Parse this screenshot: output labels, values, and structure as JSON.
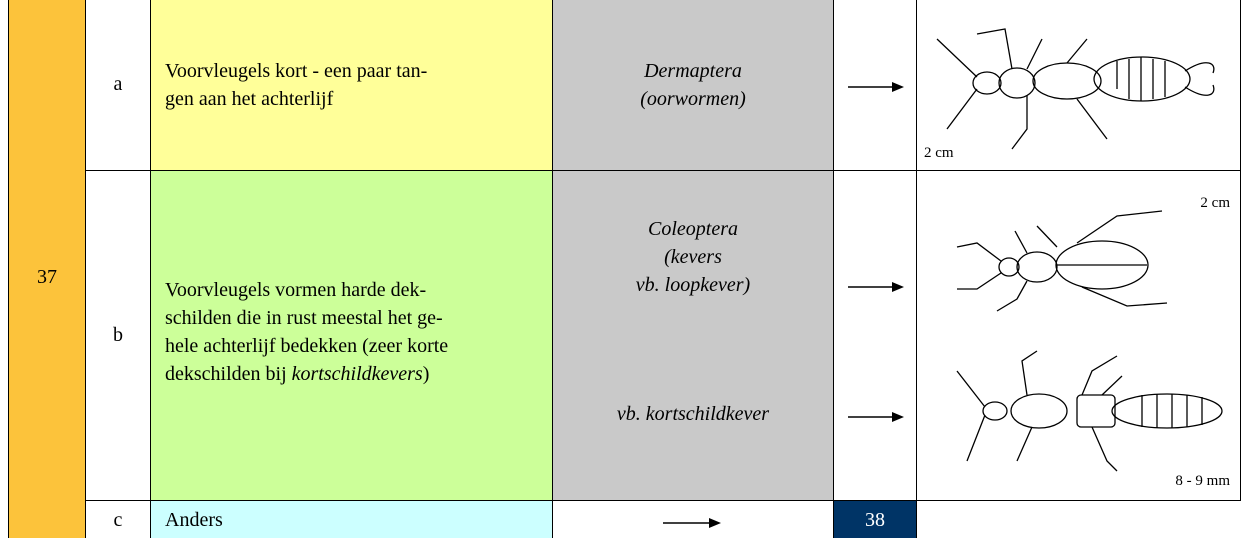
{
  "couplet": "37",
  "rows": [
    {
      "letter": "a",
      "description_lines": [
        "Voorvleugels kort - een paar tan-",
        "gen aan het achterlijf"
      ],
      "name_lines": [
        "Dermaptera",
        "(oorwormen)"
      ],
      "scale": "2 cm"
    },
    {
      "letter": "b",
      "description_lines": [
        "Voorvleugels vormen harde dek-",
        "schilden die in rust meestal het ge-",
        "hele achterlijf bedekken (zeer korte"
      ],
      "description_last_line": [
        "dekschilden bij",
        "kortschildkevers",
        ")"
      ],
      "name_lines": [
        "Coleoptera",
        "(kevers",
        "vb. loopkever)"
      ],
      "second_name": "vb. kortschildkever",
      "scale": "2 cm",
      "second_scale": "8 - 9 mm"
    },
    {
      "letter": "c",
      "description": "Anders",
      "goto": "38"
    }
  ]
}
